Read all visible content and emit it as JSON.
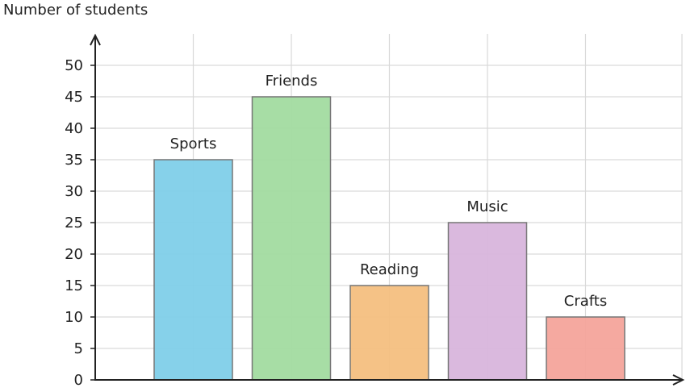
{
  "chart_data": {
    "type": "bar",
    "y_label": "Number of students",
    "categories": [
      "Sports",
      "Friends",
      "Reading",
      "Music",
      "Crafts"
    ],
    "values": [
      35,
      45,
      15,
      25,
      10
    ],
    "colors": [
      "#7fcfe9",
      "#a2dba0",
      "#f4bf80",
      "#d8b5dc",
      "#f4a49b"
    ],
    "ylim": [
      0,
      55
    ],
    "yticks": [
      0,
      5,
      10,
      15,
      20,
      25,
      30,
      35,
      40,
      45,
      50
    ],
    "grid": true
  }
}
